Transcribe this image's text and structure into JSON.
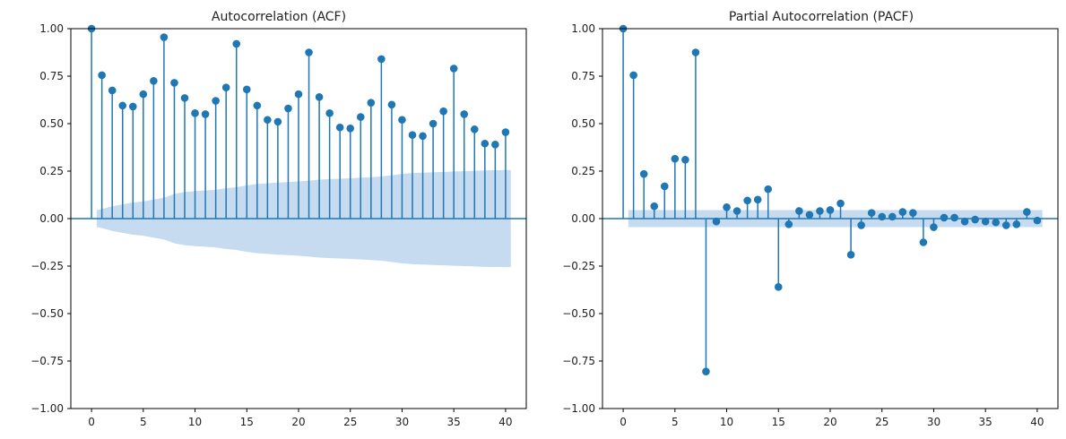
{
  "colors": {
    "stem": "#1f77b4",
    "marker": "#1f77b4",
    "confidence_band": "#c6dbef",
    "axes": "#000000",
    "text": "#222222"
  },
  "chart_data": [
    {
      "type": "scatter",
      "title": "Autocorrelation (ACF)",
      "xlabel": "",
      "ylabel": "",
      "xlim": [
        -2,
        42
      ],
      "ylim": [
        -1,
        1
      ],
      "xticks": [
        0,
        5,
        10,
        15,
        20,
        25,
        30,
        35,
        40
      ],
      "xtick_labels": [
        "0",
        "5",
        "10",
        "15",
        "20",
        "25",
        "30",
        "35",
        "40"
      ],
      "yticks": [
        -1.0,
        -0.75,
        -0.5,
        -0.25,
        0.0,
        0.25,
        0.5,
        0.75,
        1.0
      ],
      "ytick_labels": [
        "−1.00",
        "−0.75",
        "−0.50",
        "−0.25",
        "0.00",
        "0.25",
        "0.50",
        "0.75",
        "1.00"
      ],
      "grid": false,
      "legend": false,
      "series": [
        {
          "lags": [
            0,
            1,
            2,
            3,
            4,
            5,
            6,
            7,
            8,
            9,
            10,
            11,
            12,
            13,
            14,
            15,
            16,
            17,
            18,
            19,
            20,
            21,
            22,
            23,
            24,
            25,
            26,
            27,
            28,
            29,
            30,
            31,
            32,
            33,
            34,
            35,
            36,
            37,
            38,
            39,
            40
          ],
          "values": [
            1.0,
            0.755,
            0.675,
            0.595,
            0.59,
            0.655,
            0.725,
            0.955,
            0.715,
            0.635,
            0.555,
            0.55,
            0.62,
            0.69,
            0.92,
            0.68,
            0.595,
            0.52,
            0.51,
            0.58,
            0.655,
            0.875,
            0.64,
            0.555,
            0.48,
            0.475,
            0.535,
            0.61,
            0.84,
            0.6,
            0.52,
            0.44,
            0.435,
            0.5,
            0.565,
            0.79,
            0.55,
            0.47,
            0.395,
            0.39,
            0.455
          ]
        }
      ],
      "confidence_band": {
        "lags": [
          0.5,
          1,
          2,
          3,
          4,
          5,
          6,
          7,
          8,
          9,
          10,
          11,
          12,
          13,
          14,
          15,
          16,
          17,
          18,
          19,
          20,
          21,
          22,
          23,
          24,
          25,
          26,
          27,
          28,
          29,
          30,
          31,
          32,
          33,
          34,
          35,
          36,
          37,
          38,
          39,
          40.5
        ],
        "upper": [
          0.045,
          0.05,
          0.065,
          0.075,
          0.085,
          0.09,
          0.1,
          0.11,
          0.13,
          0.14,
          0.145,
          0.148,
          0.152,
          0.16,
          0.165,
          0.175,
          0.182,
          0.186,
          0.19,
          0.192,
          0.196,
          0.2,
          0.205,
          0.208,
          0.21,
          0.212,
          0.215,
          0.218,
          0.222,
          0.228,
          0.235,
          0.24,
          0.242,
          0.244,
          0.246,
          0.248,
          0.25,
          0.252,
          0.254,
          0.255,
          0.256
        ]
      }
    },
    {
      "type": "scatter",
      "title": "Partial Autocorrelation (PACF)",
      "xlabel": "",
      "ylabel": "",
      "xlim": [
        -2,
        42
      ],
      "ylim": [
        -1,
        1
      ],
      "xticks": [
        0,
        5,
        10,
        15,
        20,
        25,
        30,
        35,
        40
      ],
      "xtick_labels": [
        "0",
        "5",
        "10",
        "15",
        "20",
        "25",
        "30",
        "35",
        "40"
      ],
      "yticks": [
        -1.0,
        -0.75,
        -0.5,
        -0.25,
        0.0,
        0.25,
        0.5,
        0.75,
        1.0
      ],
      "ytick_labels": [
        "−1.00",
        "−0.75",
        "−0.50",
        "−0.25",
        "0.00",
        "0.25",
        "0.50",
        "0.75",
        "1.00"
      ],
      "grid": false,
      "legend": false,
      "series": [
        {
          "lags": [
            0,
            1,
            2,
            3,
            4,
            5,
            6,
            7,
            8,
            9,
            10,
            11,
            12,
            13,
            14,
            15,
            16,
            17,
            18,
            19,
            20,
            21,
            22,
            23,
            24,
            25,
            26,
            27,
            28,
            29,
            30,
            31,
            32,
            33,
            34,
            35,
            36,
            37,
            38,
            39,
            40
          ],
          "values": [
            1.0,
            0.755,
            0.235,
            0.065,
            0.17,
            0.315,
            0.31,
            0.875,
            -0.805,
            -0.015,
            0.06,
            0.04,
            0.095,
            0.1,
            0.155,
            -0.36,
            -0.03,
            0.04,
            0.02,
            0.04,
            0.045,
            0.08,
            -0.19,
            -0.035,
            0.03,
            0.01,
            0.01,
            0.035,
            0.03,
            -0.125,
            -0.045,
            0.005,
            0.005,
            -0.015,
            -0.005,
            -0.015,
            -0.02,
            -0.035,
            -0.03,
            0.035,
            -0.01
          ]
        }
      ],
      "confidence_band": {
        "lags": [
          0.5,
          40.5
        ],
        "upper": [
          0.045,
          0.045
        ]
      }
    }
  ]
}
